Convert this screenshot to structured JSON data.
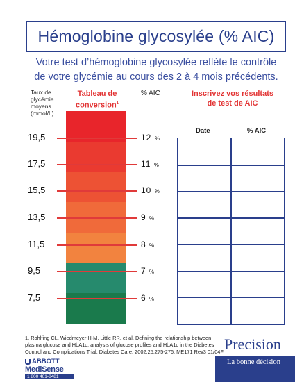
{
  "title": "Hémoglobine glycosylée (% AIC)",
  "corner_mark": ".",
  "subtitle_line1": "Votre test d’hémoglobine glycosylée reflète le contrôle",
  "subtitle_line2": "de votre glycémie au cours des 2 à 4 mois précédents.",
  "col_glucose_line1": "Taux de",
  "col_glucose_line2": "glycémie",
  "col_glucose_line3": "moyens",
  "col_glucose_line4": "(mmol/L)",
  "col_table_line1": "Tableau de",
  "col_table_line2": "conversion",
  "col_table_sup": "1",
  "col_aic": "% AIC",
  "col_results_line1": "Inscrivez vos résultats",
  "col_results_line2": "de test de AIC",
  "table_head_date": "Date",
  "table_head_aic": "% AIC",
  "chart_data": {
    "type": "table",
    "glucose_labels": [
      "19,5",
      "17,5",
      "15,5",
      "13,5",
      "11,5",
      "9,5",
      "7,5"
    ],
    "aic_labels": [
      "12",
      "11",
      "10",
      "9",
      "8",
      "7",
      "6"
    ],
    "aic_unit": "%",
    "band_colors": [
      "#e8252b",
      "#ea3a30",
      "#ed5234",
      "#f06a3a",
      "#f2833f",
      "#268a6d",
      "#1a7a4c"
    ]
  },
  "results_rows": 7,
  "footnote_line1": "1. Rohlfing CL, Wiedmeyer H-M, Little RR, et al. Defining the relationship between",
  "footnote_line2": "plasma glucose and HbA1c: analysis of glucose profiles and HbA1c in the Diabetes",
  "footnote_line3": "Control and Complications Trial. Diabetes Care. 2002;25:275-276. ME171 Rev3 01/04F",
  "brand": "Precision",
  "tagline": "La bonne décision",
  "logo_abbott": "ABBOTT",
  "logo_medisense": "MediSense",
  "logo_phone": "1 800 461-8481"
}
